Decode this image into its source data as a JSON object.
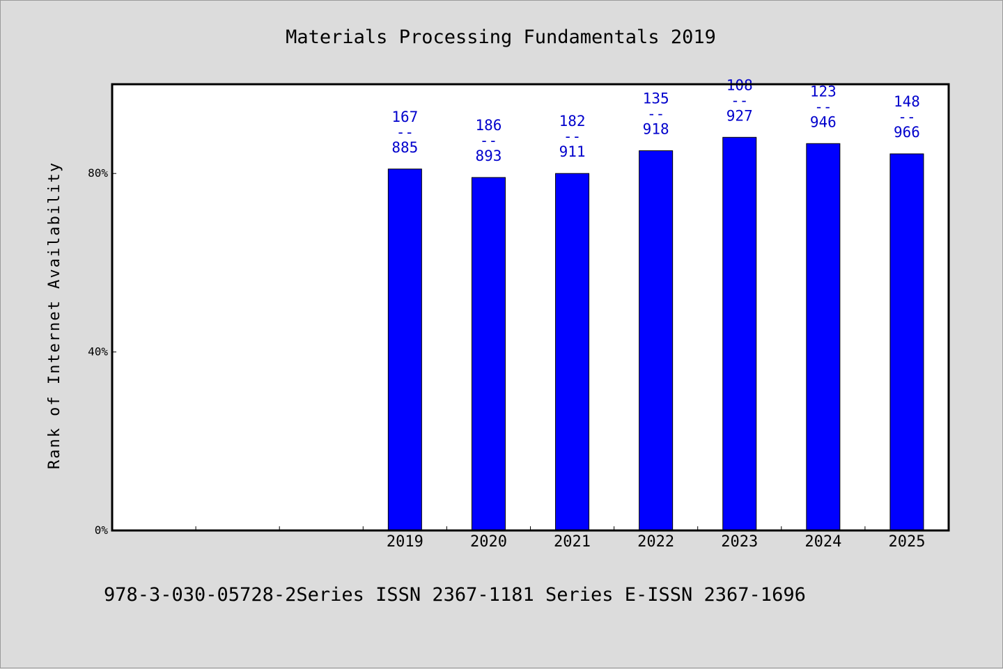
{
  "chart_data": {
    "type": "bar",
    "title": "Materials Processing Fundamentals 2019",
    "xlabel": "",
    "ylabel": "Rank of Internet Availability",
    "categories": [
      "2019",
      "2020",
      "2021",
      "2022",
      "2023",
      "2024",
      "2025"
    ],
    "values": [
      81,
      79.1,
      80,
      85.1,
      88.1,
      86.7,
      84.4
    ],
    "value_unit": "%",
    "data_labels": [
      {
        "top": "167",
        "mid": "--",
        "bottom": "885"
      },
      {
        "top": "186",
        "mid": "--",
        "bottom": "893"
      },
      {
        "top": "182",
        "mid": "--",
        "bottom": "911"
      },
      {
        "top": "135",
        "mid": "--",
        "bottom": "918"
      },
      {
        "top": "108",
        "mid": "--",
        "bottom": "927"
      },
      {
        "top": "123",
        "mid": "--",
        "bottom": "946"
      },
      {
        "top": "148",
        "mid": "--",
        "bottom": "966"
      }
    ],
    "ylim": [
      0,
      100
    ],
    "yticks": [
      0,
      40,
      80
    ],
    "ytick_labels": [
      "0%",
      "40%",
      "80%"
    ],
    "empty_leading_slots": 3,
    "bar_color": "#0000ff",
    "label_color": "#0000cc",
    "grid": false,
    "legend": "none"
  },
  "footnote": "978-3-030-05728-2Series ISSN 2367-1181 Series E-ISSN 2367-1696"
}
